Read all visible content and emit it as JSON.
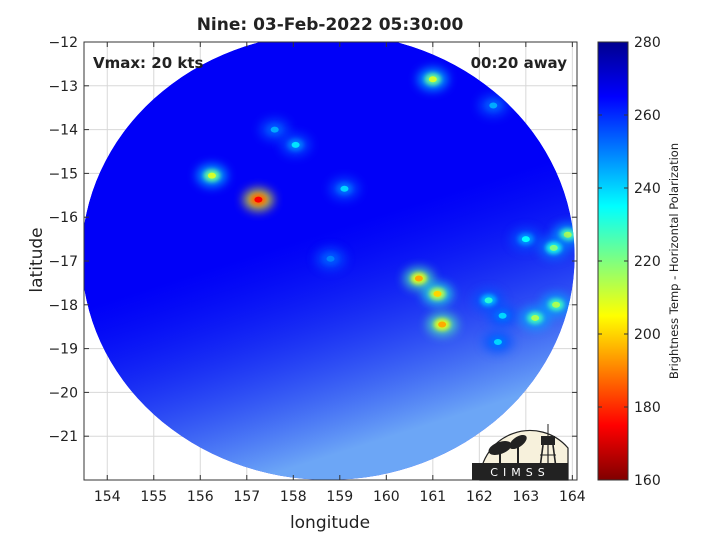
{
  "chart_data": {
    "type": "heatmap",
    "title": "Nine: 03-Feb-2022 05:30:00",
    "xlabel": "longitude",
    "ylabel": "latitude",
    "xlim": [
      153.5,
      164.1
    ],
    "ylim": [
      -22,
      -12
    ],
    "x_ticks": [
      154,
      155,
      156,
      157,
      158,
      159,
      160,
      161,
      162,
      163,
      164
    ],
    "y_ticks": [
      -12,
      -13,
      -14,
      -15,
      -16,
      -17,
      -18,
      -19,
      -20,
      -21
    ],
    "grid": true,
    "annotations": {
      "vmax": "Vmax: 20 kts",
      "time_away": "00:20 away"
    },
    "colorbar": {
      "label": "Brightness Temp - Horizontal Polarization",
      "range": [
        160,
        280
      ],
      "ticks": [
        160,
        180,
        200,
        220,
        240,
        260,
        280
      ],
      "colormap": "jet"
    },
    "swath": {
      "center_lon": 158.75,
      "center_lat": -16.9,
      "radius_lon": 5.3,
      "radius_lat": 5.1
    },
    "background_value": 266,
    "features": [
      {
        "lon": 157.25,
        "lat": -15.6,
        "value": 175
      },
      {
        "lon": 156.25,
        "lat": -15.05,
        "value": 210
      },
      {
        "lon": 157.6,
        "lat": -14.0,
        "value": 245
      },
      {
        "lon": 158.05,
        "lat": -14.35,
        "value": 238
      },
      {
        "lon": 159.1,
        "lat": -15.35,
        "value": 240
      },
      {
        "lon": 161.0,
        "lat": -12.85,
        "value": 210
      },
      {
        "lon": 162.3,
        "lat": -13.45,
        "value": 245
      },
      {
        "lon": 160.7,
        "lat": -17.4,
        "value": 195
      },
      {
        "lon": 161.1,
        "lat": -17.75,
        "value": 200
      },
      {
        "lon": 161.2,
        "lat": -18.45,
        "value": 195
      },
      {
        "lon": 162.2,
        "lat": -17.9,
        "value": 230
      },
      {
        "lon": 162.5,
        "lat": -18.25,
        "value": 240
      },
      {
        "lon": 163.0,
        "lat": -16.5,
        "value": 235
      },
      {
        "lon": 163.9,
        "lat": -16.4,
        "value": 215
      },
      {
        "lon": 163.6,
        "lat": -16.7,
        "value": 220
      },
      {
        "lon": 163.65,
        "lat": -18.0,
        "value": 215
      },
      {
        "lon": 163.2,
        "lat": -18.3,
        "value": 215
      },
      {
        "lon": 162.4,
        "lat": -18.85,
        "value": 240
      },
      {
        "lon": 158.8,
        "lat": -16.95,
        "value": 250
      }
    ]
  },
  "logo": {
    "text": "CIMSS"
  }
}
